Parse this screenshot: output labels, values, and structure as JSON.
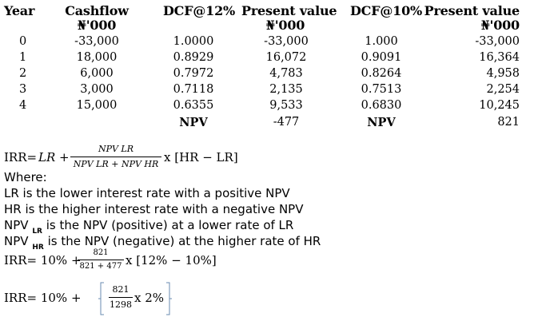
{
  "table": {
    "headers": {
      "year": "Year",
      "cashflow": "Cashflow",
      "cashflow_unit": "₦'000",
      "dcf12": "DCF@12%",
      "pv1": "Present value",
      "pv1_unit": "₦'000",
      "dcf10": "DCF@10%",
      "pv2": "Present value",
      "pv2_unit": "₦'000"
    },
    "rows": [
      {
        "year": "0",
        "cashflow": "-33,000",
        "dcf12": "1.0000",
        "pv1": "-33,000",
        "dcf10": "1.000",
        "pv2": "-33,000"
      },
      {
        "year": "1",
        "cashflow": "18,000",
        "dcf12": "0.8929",
        "pv1": "16,072",
        "dcf10": "0.9091",
        "pv2": "16,364"
      },
      {
        "year": "2",
        "cashflow": "6,000",
        "dcf12": "0.7972",
        "pv1": "4,783",
        "dcf10": "0.8264",
        "pv2": "4,958"
      },
      {
        "year": "3",
        "cashflow": "3,000",
        "dcf12": "0.7118",
        "pv1": "2,135",
        "dcf10": "0.7513",
        "pv2": "2,254"
      },
      {
        "year": "4",
        "cashflow": "15,000",
        "dcf12": "0.6355",
        "pv1": "9,533",
        "dcf10": "0.6830",
        "pv2": "10,245"
      }
    ],
    "npv": {
      "label1": "NPV",
      "value1": "-477",
      "label2": "NPV",
      "value2": "821"
    }
  },
  "formula": {
    "irr_prefix": "IRR=",
    "lr_term": "LR +",
    "frac_num": "NPV  LR",
    "frac_den": "NPV  LR + NPV  HR",
    "tail": "x [HR − LR]"
  },
  "explanation": {
    "where": "Where:",
    "line_lr": "LR is the lower interest rate with a positive NPV",
    "line_hr": "HR is the higher interest rate with a negative NPV",
    "npv_lr_prefix": "NPV",
    "npv_lr_sub": "LR",
    "npv_lr_text": "is the NPV (positive) at a lower rate of LR",
    "npv_hr_prefix": "NPV",
    "npv_hr_sub": "HR",
    "npv_hr_text": "is the NPV (negative) at the higher rate of HR"
  },
  "calc1": {
    "prefix": "IRR= 10% +",
    "num": "821",
    "den": "821 + 477",
    "tail": "x [12% − 10%]"
  },
  "calc2": {
    "prefix": "IRR=  10% +",
    "num": "821",
    "den": "1298",
    "tail": "x 2%"
  }
}
